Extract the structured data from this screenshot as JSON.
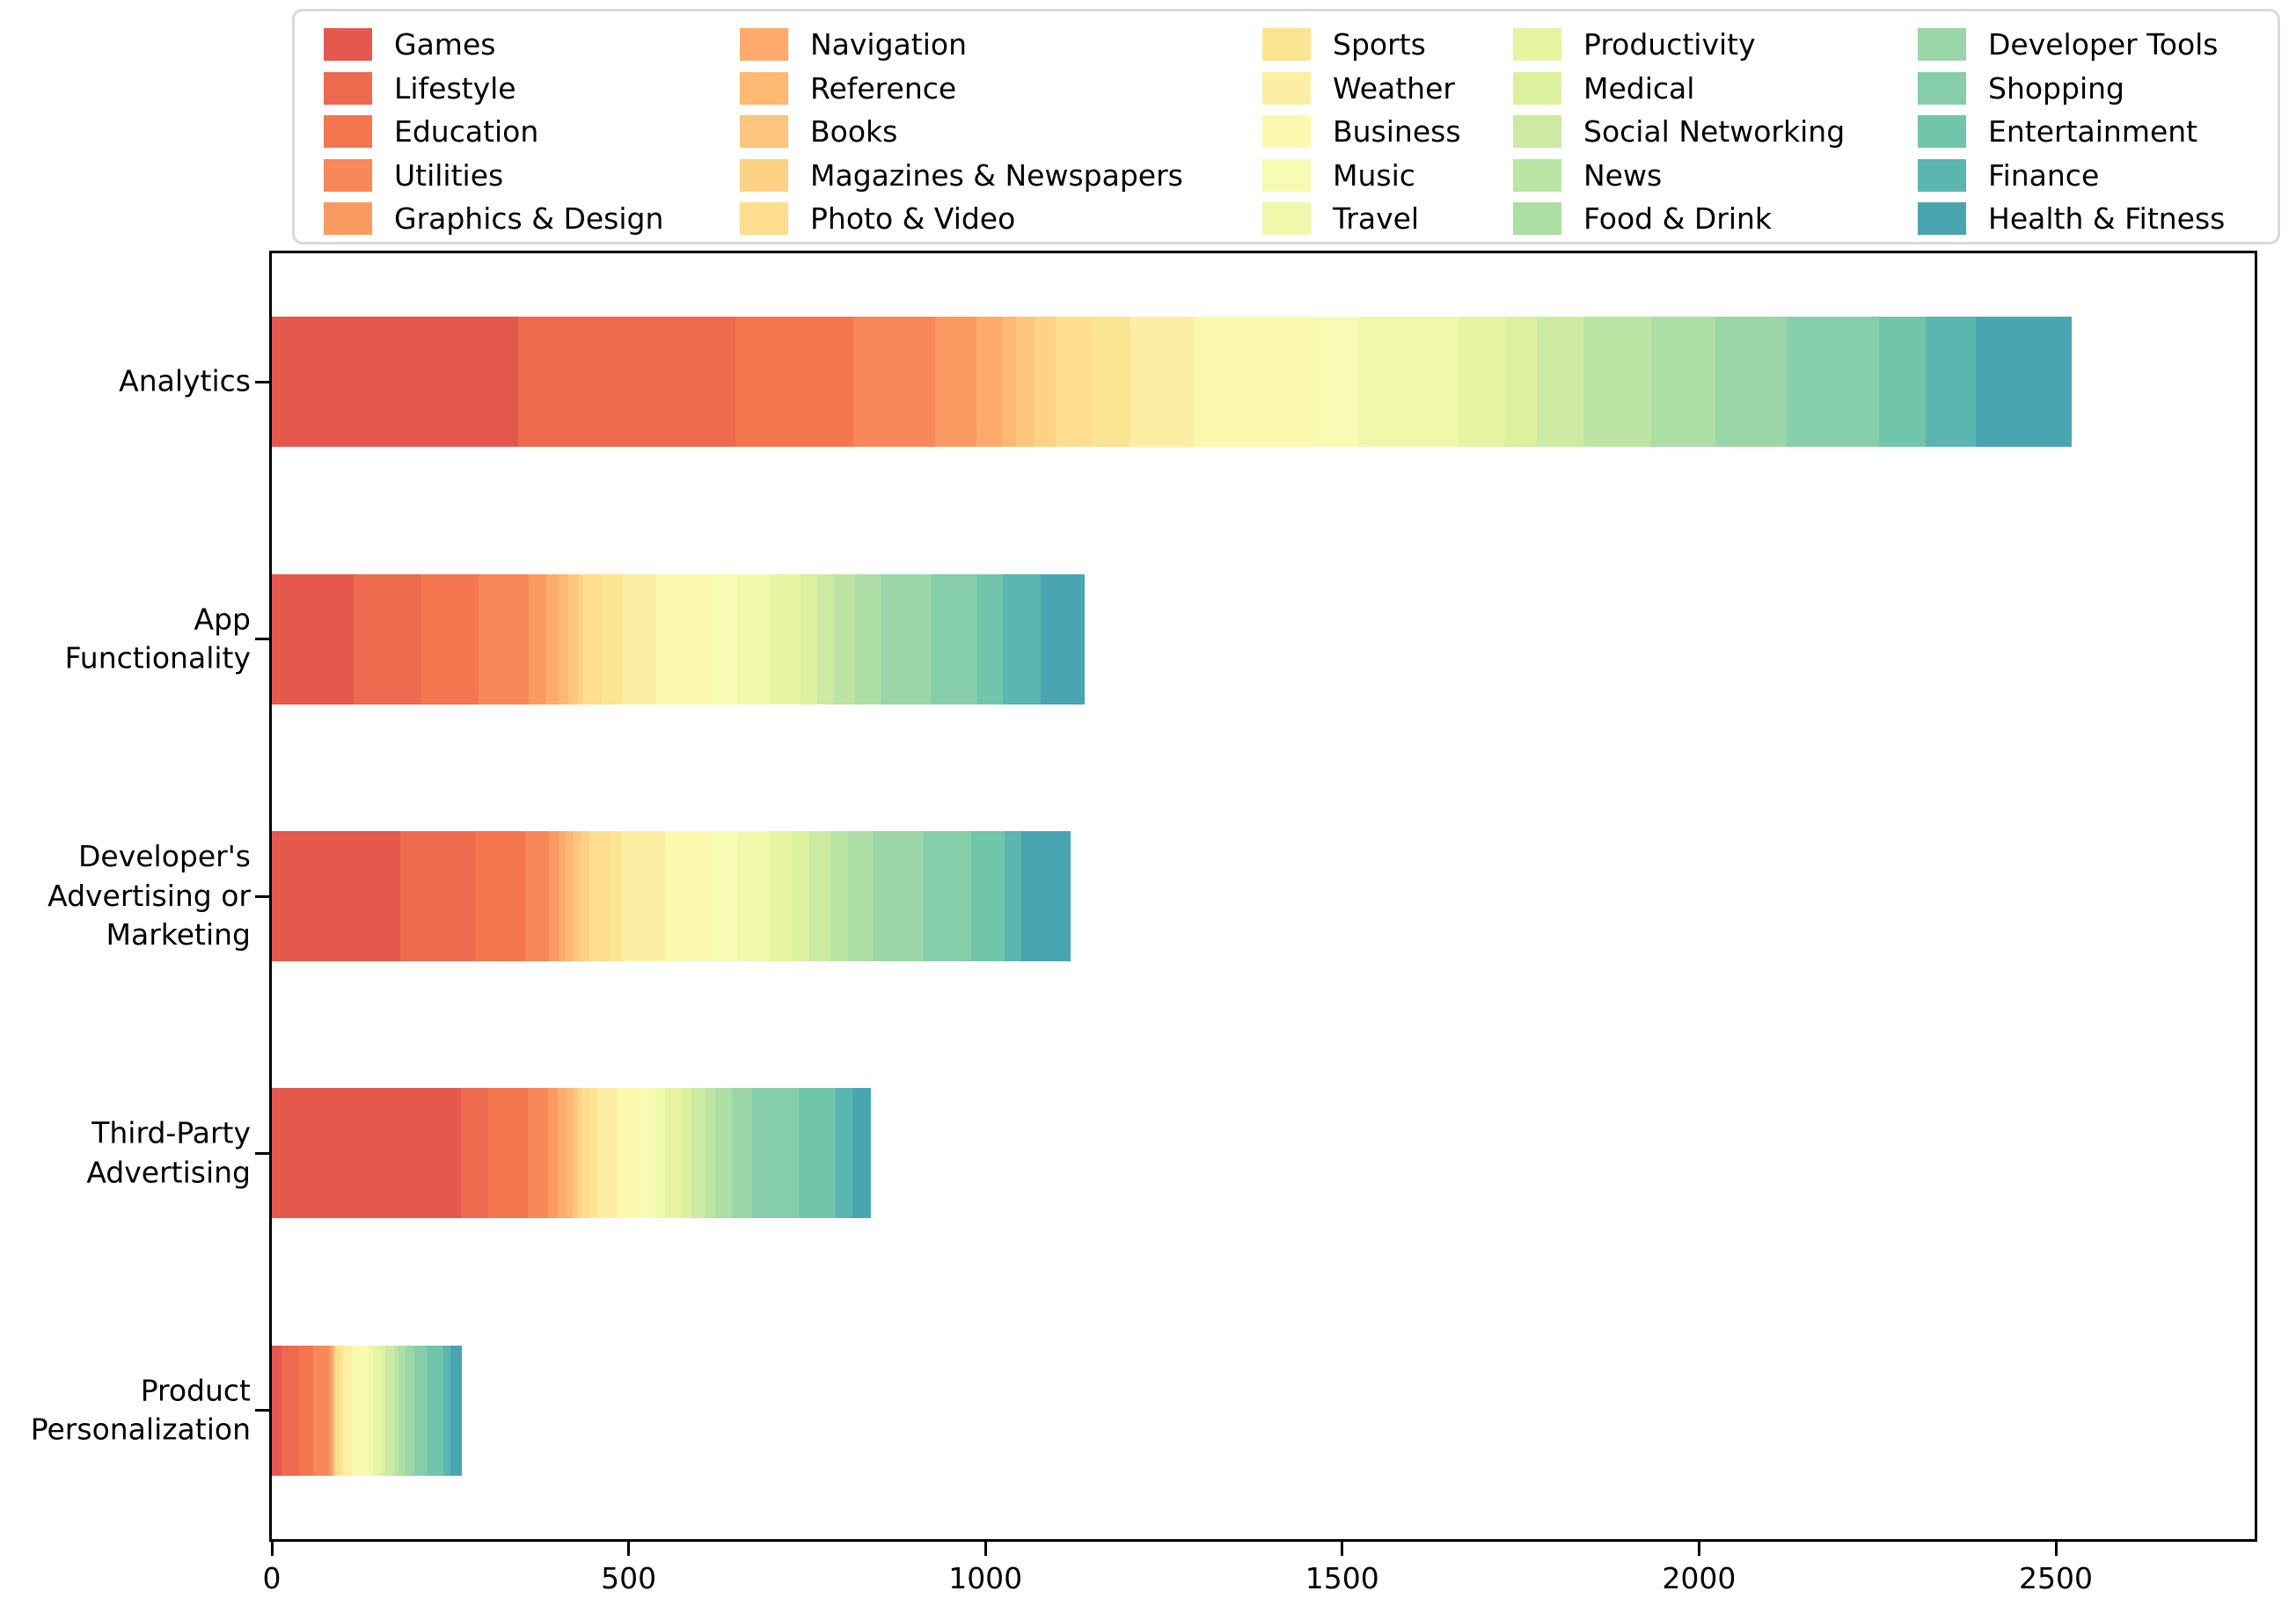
{
  "chart_data": {
    "type": "bar",
    "orientation": "horizontal",
    "stacked": true,
    "title": "",
    "xlabel": "",
    "ylabel": "",
    "grid": false,
    "legend_position": "top",
    "legend_ncol": 5,
    "categories": [
      "Analytics",
      "App Functionality",
      "Developer's Advertising or Marketing",
      "Third-Party Advertising",
      "Product Personalization"
    ],
    "category_label_lines": [
      [
        "Analytics"
      ],
      [
        "App",
        "Functionality"
      ],
      [
        "Developer's",
        "Advertising or",
        "Marketing"
      ],
      [
        "Third-Party",
        "Advertising"
      ],
      [
        "Product",
        "Personalization"
      ]
    ],
    "x_ticks": [
      0,
      500,
      1000,
      1500,
      2000,
      2500
    ],
    "x_tick_labels": [
      "0",
      "500",
      "1000",
      "1500",
      "2000",
      "2500"
    ],
    "xlim": [
      0,
      2778
    ],
    "series": [
      {
        "name": "Games",
        "color": "#e4584e",
        "values": [
          345,
          115,
          180,
          265,
          13
        ]
      },
      {
        "name": "Lifestyle",
        "color": "#ed6a4e",
        "values": [
          305,
          95,
          105,
          38,
          24
        ]
      },
      {
        "name": "Education",
        "color": "#f3764f",
        "values": [
          165,
          80,
          70,
          56,
          21
        ]
      },
      {
        "name": "Utilities",
        "color": "#f8875a",
        "values": [
          115,
          70,
          33,
          28,
          22
        ]
      },
      {
        "name": "Graphics & Design",
        "color": "#fa9a63",
        "values": [
          58,
          25,
          15,
          14,
          4
        ]
      },
      {
        "name": "Navigation",
        "color": "#fcab6c",
        "values": [
          35,
          17,
          8,
          12,
          2
        ]
      },
      {
        "name": "Reference",
        "color": "#fdb873",
        "values": [
          20,
          13,
          12,
          9,
          1
        ]
      },
      {
        "name": "Books",
        "color": "#fdc57e",
        "values": [
          25,
          14,
          10,
          6,
          1
        ]
      },
      {
        "name": "Magazines & Newspapers",
        "color": "#fdd285",
        "values": [
          30,
          8,
          12,
          6,
          1
        ]
      },
      {
        "name": "Photo & Video",
        "color": "#fede8e",
        "values": [
          50,
          25,
          28,
          12,
          7
        ]
      },
      {
        "name": "Sports",
        "color": "#fbe593",
        "values": [
          55,
          30,
          18,
          11,
          4
        ]
      },
      {
        "name": "Weather",
        "color": "#fcefa3",
        "values": [
          90,
          47,
          60,
          29,
          12
        ]
      },
      {
        "name": "Business",
        "color": "#fbf9af",
        "values": [
          170,
          77,
          65,
          28,
          14
        ]
      },
      {
        "name": "Music",
        "color": "#f7fbb3",
        "values": [
          60,
          36,
          36,
          23,
          10
        ]
      },
      {
        "name": "Travel",
        "color": "#eff8ab",
        "values": [
          140,
          47,
          47,
          14,
          7
        ]
      },
      {
        "name": "Productivity",
        "color": "#e6f4a2",
        "values": [
          65,
          42,
          30,
          23,
          10
        ]
      },
      {
        "name": "Medical",
        "color": "#dcf09e",
        "values": [
          45,
          23,
          24,
          14,
          6
        ]
      },
      {
        "name": "Social Networking",
        "color": "#cdeaa2",
        "values": [
          65,
          24,
          30,
          20,
          13
        ]
      },
      {
        "name": "News",
        "color": "#bce4a5",
        "values": [
          95,
          29,
          24,
          13,
          6
        ]
      },
      {
        "name": "Food & Drink",
        "color": "#acdea6",
        "values": [
          90,
          36,
          36,
          24,
          10
        ]
      },
      {
        "name": "Developer Tools",
        "color": "#9ad6a7",
        "values": [
          100,
          70,
          71,
          28,
          12
        ]
      },
      {
        "name": "Shopping",
        "color": "#86cdaa",
        "values": [
          130,
          66,
          66,
          65,
          19
        ]
      },
      {
        "name": "Entertainment",
        "color": "#70c5ab",
        "values": [
          65,
          35,
          47,
          52,
          22
        ]
      },
      {
        "name": "Finance",
        "color": "#5bb5b0",
        "values": [
          70,
          53,
          24,
          24,
          9
        ]
      },
      {
        "name": "Health & Fitness",
        "color": "#4aa5b2",
        "values": [
          135,
          62,
          69,
          26,
          17
        ]
      }
    ]
  }
}
